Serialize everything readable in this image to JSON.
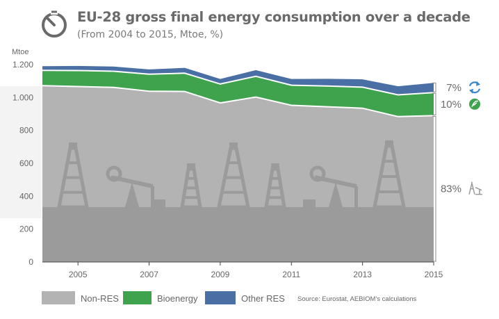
{
  "header": {
    "title": "EU-28 gross final energy consumption over a decade",
    "subtitle": "(From 2004 to 2015, Mtoe, %)",
    "icon": "gauge-icon"
  },
  "chart_data": {
    "type": "area",
    "stacked": true,
    "title": "EU-28 gross final energy consumption over a decade",
    "subtitle": "(From 2004 to 2015, Mtoe, %)",
    "ylabel": "Mtoe",
    "xlabel": "",
    "x": [
      2004,
      2005,
      2006,
      2007,
      2008,
      2009,
      2010,
      2011,
      2012,
      2013,
      2014,
      2015
    ],
    "ylim": [
      0,
      1200
    ],
    "yticks": [
      0,
      200,
      400,
      600,
      800,
      1000,
      1200
    ],
    "ytick_labels": [
      "0",
      "200",
      "400",
      "600",
      "800",
      "1.000",
      "1.200"
    ],
    "xtick_labels": [
      "2005",
      "2007",
      "2009",
      "2011",
      "2013",
      "2015"
    ],
    "grid": false,
    "legend_position": "bottom",
    "series": [
      {
        "name": "Non-RES",
        "color": "#b3b3b3",
        "values": [
          1072,
          1067,
          1062,
          1038,
          1037,
          967,
          1003,
          953,
          944,
          935,
          884,
          890
        ]
      },
      {
        "name": "Bioenergy",
        "color": "#3fa34d",
        "values": [
          93,
          97,
          98,
          104,
          111,
          115,
          126,
          122,
          126,
          128,
          132,
          140
        ]
      },
      {
        "name": "Other RES",
        "color": "#4a6fa5",
        "values": [
          30,
          32,
          33,
          33,
          37,
          35,
          42,
          42,
          48,
          52,
          57,
          63
        ]
      }
    ],
    "shares": [
      {
        "label": "7%",
        "icon": "recycle-icon",
        "color": "#3a86c8"
      },
      {
        "label": "10%",
        "icon": "leaf-icon",
        "color": "#3fa34d"
      },
      {
        "label": "83%",
        "icon": "oil-rig-icon",
        "color": "#9a9a9a"
      }
    ],
    "source": "Source: Eurostat, AEBIOM's calculations"
  }
}
